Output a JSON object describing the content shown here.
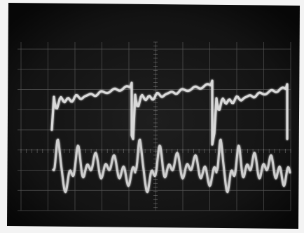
{
  "photo": {
    "subject": "oscilloscope-screen",
    "traces": [
      "upper-waveform",
      "lower-waveform"
    ],
    "colors": {
      "border": "#f3f3f3",
      "screen": "#141414",
      "graticule": "#8a8a8a",
      "trace_upper": "#d9d9d9",
      "trace_lower": "#cfcfcf"
    }
  }
}
